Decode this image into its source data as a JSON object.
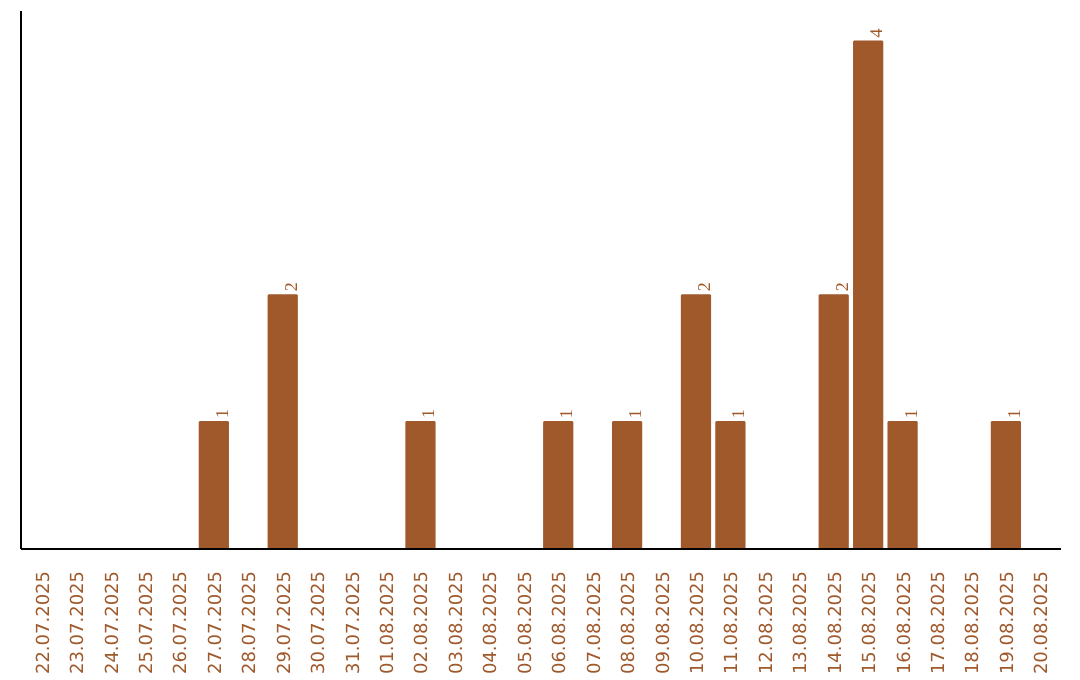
{
  "chart_data": {
    "type": "bar",
    "categories": [
      "22.07.2025",
      "23.07.2025",
      "24.07.2025",
      "25.07.2025",
      "26.07.2025",
      "27.07.2025",
      "28.07.2025",
      "29.07.2025",
      "30.07.2025",
      "31.07.2025",
      "01.08.2025",
      "02.08.2025",
      "03.08.2025",
      "04.08.2025",
      "05.08.2025",
      "06.08.2025",
      "07.08.2025",
      "08.08.2025",
      "09.08.2025",
      "10.08.2025",
      "11.08.2025",
      "12.08.2025",
      "13.08.2025",
      "14.08.2025",
      "15.08.2025",
      "16.08.2025",
      "17.08.2025",
      "18.08.2025",
      "19.08.2025",
      "20.08.2025"
    ],
    "values": [
      0,
      0,
      0,
      0,
      0,
      1,
      0,
      2,
      0,
      0,
      0,
      1,
      0,
      0,
      0,
      1,
      0,
      1,
      0,
      2,
      1,
      0,
      0,
      2,
      4,
      1,
      0,
      0,
      1,
      0
    ],
    "value_labels": [
      null,
      null,
      null,
      null,
      null,
      "1",
      null,
      "2",
      null,
      null,
      null,
      "1",
      null,
      null,
      null,
      "1",
      null,
      "1",
      null,
      "2",
      "1",
      null,
      null,
      "2",
      "4",
      "1",
      null,
      null,
      "1",
      null
    ],
    "color": "#a0592b",
    "grid": false,
    "tick_labels": "x"
  }
}
